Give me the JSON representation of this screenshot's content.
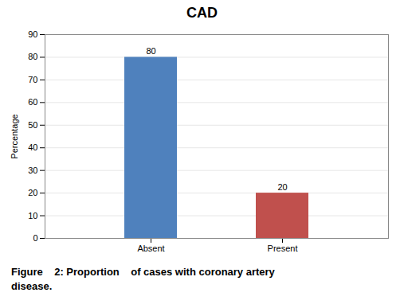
{
  "chart_data": {
    "type": "bar",
    "title": "CAD",
    "categories": [
      "Absent",
      "Present"
    ],
    "values": [
      80,
      20
    ],
    "colors": [
      "#4F81BD",
      "#C0504D"
    ],
    "ylabel": "Percentage",
    "ylim": [
      0,
      90
    ],
    "yticks": [
      0,
      10,
      20,
      30,
      40,
      50,
      60,
      70,
      80,
      90
    ],
    "grid": true,
    "data_labels": true,
    "caption": [
      "Figure    2: Proportion    of cases with coronary artery",
      "disease."
    ]
  }
}
